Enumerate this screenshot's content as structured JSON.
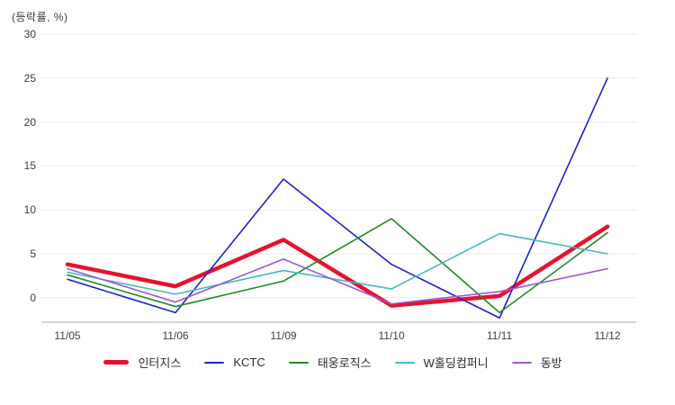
{
  "chart_data": {
    "type": "line",
    "title": "",
    "ylabel": "(등락률, %)",
    "x_categories": [
      "11/05",
      "11/06",
      "11/09",
      "11/10",
      "11/11",
      "11/12"
    ],
    "y_ticks": [
      0,
      5,
      10,
      15,
      20,
      25,
      30
    ],
    "ylim": [
      -3,
      30
    ],
    "grid": true,
    "legend_position": "bottom",
    "series": [
      {
        "name": "인터지스",
        "color": "#e8112d",
        "line_width": 4.5,
        "values": [
          3.8,
          1.3,
          6.6,
          -0.9,
          0.2,
          8.1
        ]
      },
      {
        "name": "KCTC",
        "color": "#2121cc",
        "line_width": 1.6,
        "values": [
          2.1,
          -1.7,
          13.5,
          3.8,
          -2.3,
          25.0
        ]
      },
      {
        "name": "태웅로직스",
        "color": "#228b22",
        "line_width": 1.6,
        "values": [
          2.6,
          -1.0,
          1.9,
          9.0,
          -1.7,
          7.4
        ]
      },
      {
        "name": "W홀딩컴퍼니",
        "color": "#45b8c2",
        "line_width": 1.6,
        "values": [
          2.9,
          0.4,
          3.1,
          1.0,
          7.3,
          5.0
        ]
      },
      {
        "name": "동방",
        "color": "#9b59d6",
        "line_width": 1.6,
        "values": [
          3.3,
          -0.5,
          4.4,
          -0.7,
          0.7,
          3.3
        ]
      }
    ],
    "colors": {
      "gridline": "#e9e9e9",
      "axis_line": "#c9c9c9",
      "tick_text": "#3d3d3d"
    }
  }
}
